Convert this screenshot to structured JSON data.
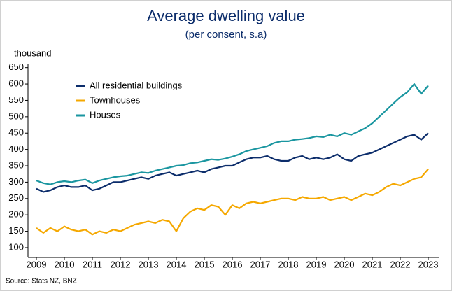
{
  "chart_data": {
    "type": "line",
    "title": "Average dwelling value",
    "subtitle": "(per consent, s.a)",
    "y_label": "thousand",
    "source": "Source: Stats NZ, BNZ",
    "x": [
      2009,
      2009.25,
      2009.5,
      2009.75,
      2010,
      2010.25,
      2010.5,
      2010.75,
      2011,
      2011.25,
      2011.5,
      2011.75,
      2012,
      2012.25,
      2012.5,
      2012.75,
      2013,
      2013.25,
      2013.5,
      2013.75,
      2014,
      2014.25,
      2014.5,
      2014.75,
      2015,
      2015.25,
      2015.5,
      2015.75,
      2016,
      2016.25,
      2016.5,
      2016.75,
      2017,
      2017.25,
      2017.5,
      2017.75,
      2018,
      2018.25,
      2018.5,
      2018.75,
      2019,
      2019.25,
      2019.5,
      2019.75,
      2020,
      2020.25,
      2020.5,
      2020.75,
      2021,
      2021.25,
      2021.5,
      2021.75,
      2022,
      2022.25,
      2022.5,
      2022.75,
      2023
    ],
    "series": [
      {
        "name": "All residential buildings",
        "color": "#0c2d6b",
        "values": [
          280,
          270,
          275,
          285,
          290,
          285,
          285,
          290,
          275,
          280,
          290,
          300,
          300,
          305,
          310,
          315,
          310,
          320,
          325,
          330,
          320,
          325,
          330,
          335,
          330,
          340,
          345,
          350,
          350,
          360,
          370,
          375,
          375,
          380,
          370,
          365,
          365,
          375,
          380,
          370,
          375,
          370,
          375,
          385,
          370,
          365,
          380,
          385,
          390,
          400,
          410,
          420,
          430,
          440,
          445,
          430,
          450
        ]
      },
      {
        "name": "Townhouses",
        "color": "#f5a800",
        "values": [
          160,
          145,
          160,
          150,
          165,
          155,
          150,
          155,
          140,
          150,
          145,
          155,
          150,
          160,
          170,
          175,
          180,
          175,
          185,
          180,
          150,
          190,
          210,
          220,
          215,
          230,
          225,
          200,
          230,
          220,
          235,
          240,
          235,
          240,
          245,
          250,
          250,
          245,
          255,
          250,
          250,
          255,
          245,
          250,
          255,
          245,
          255,
          265,
          260,
          270,
          285,
          295,
          290,
          300,
          310,
          315,
          340
        ]
      },
      {
        "name": "Houses",
        "color": "#1a96a0",
        "values": [
          305,
          297,
          293,
          300,
          303,
          300,
          305,
          308,
          297,
          305,
          310,
          315,
          318,
          320,
          325,
          330,
          328,
          335,
          340,
          345,
          350,
          352,
          358,
          360,
          365,
          370,
          368,
          372,
          378,
          385,
          395,
          400,
          405,
          410,
          420,
          425,
          425,
          430,
          432,
          435,
          440,
          438,
          445,
          440,
          450,
          445,
          455,
          465,
          480,
          500,
          520,
          540,
          560,
          575,
          600,
          570,
          595
        ]
      }
    ],
    "xlim": [
      2008.7,
      2023.4
    ],
    "xticks": [
      2009,
      2010,
      2011,
      2012,
      2013,
      2014,
      2015,
      2016,
      2017,
      2018,
      2019,
      2020,
      2021,
      2022,
      2023
    ],
    "ylim": [
      70,
      660
    ],
    "yticks": [
      100,
      150,
      200,
      250,
      300,
      350,
      400,
      450,
      500,
      550,
      600,
      650
    ],
    "grid": false,
    "legend": "upper left"
  }
}
